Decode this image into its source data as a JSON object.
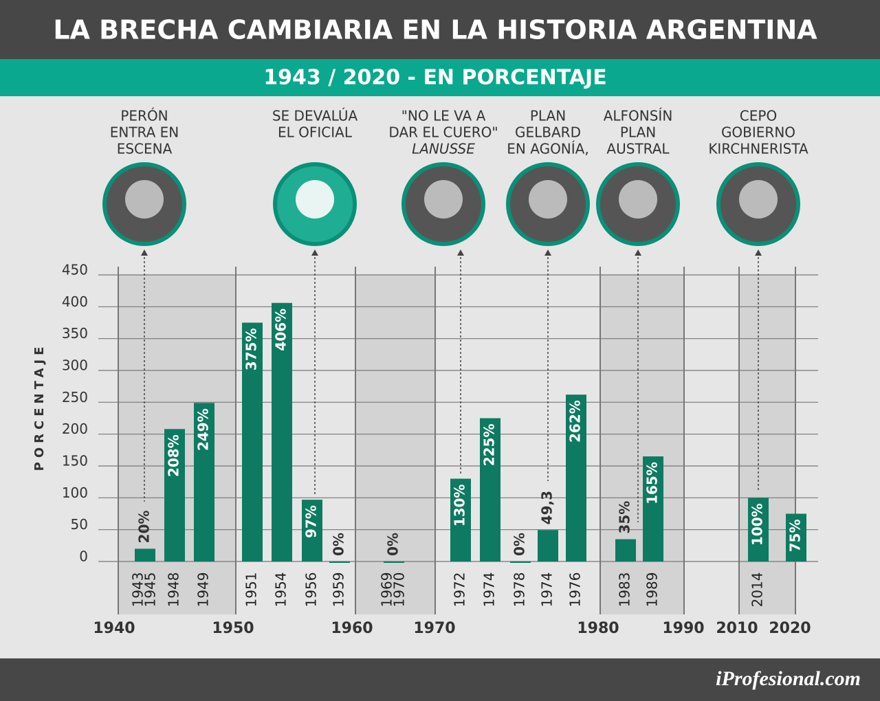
{
  "chart_data": {
    "type": "bar",
    "title": "LA BRECHA CAMBIARIA EN LA HISTORIA ARGENTINA",
    "subtitle": "1943 / 2020 - EN PORCENTAJE",
    "y_label": "PORCENTAJE",
    "color": "#0e7a62",
    "ylim": [
      0,
      450
    ],
    "yticks": [
      0,
      50,
      100,
      150,
      200,
      250,
      300,
      350,
      400,
      450
    ],
    "grid": true,
    "categories": [
      [
        "1943",
        "1945"
      ],
      [
        "1948"
      ],
      [
        "1949"
      ],
      [
        "1951"
      ],
      [
        "1954"
      ],
      [
        "1956"
      ],
      [
        "1959"
      ],
      [
        "1969",
        "1970"
      ],
      [
        "1972"
      ],
      [
        "1974"
      ],
      [
        "1978"
      ],
      [
        "1974"
      ],
      [
        "1976"
      ],
      [
        "1983"
      ],
      [
        "1989"
      ],
      [
        "2014"
      ],
      null
    ],
    "values": [
      20,
      208,
      249,
      375,
      406,
      97,
      0,
      0,
      130,
      225,
      0,
      49.3,
      262,
      35,
      165,
      100,
      75
    ],
    "value_labels": [
      "20%",
      "208%",
      "249%",
      "375%",
      "406%",
      "97%",
      "0%",
      "0%",
      "130%",
      "225%",
      "0%",
      "49,3",
      "262%",
      "35%",
      "165%",
      "100%",
      "75%"
    ],
    "decades": [
      1940,
      1950,
      1960,
      1970,
      1980,
      1990,
      2010,
      2020
    ],
    "annotations": [
      {
        "lines": [
          "PERÓN",
          "ENTRA EN",
          "ESCENA"
        ]
      },
      {
        "lines": [
          "SE DEVALÚA",
          "EL OFICIAL"
        ]
      },
      {
        "lines": [
          "\"NO LE VA A",
          "DAR EL CUERO\"",
          "LANUSSE"
        ]
      },
      {
        "lines": [
          "PLAN",
          "GELBARD",
          "EN AGONÍA,"
        ]
      },
      {
        "lines": [
          "ALFONSÍN",
          "PLAN",
          "AUSTRAL"
        ]
      },
      {
        "lines": [
          "CEPO",
          "GOBIERNO",
          "KIRCHNERISTA"
        ]
      }
    ],
    "footer": "iProfesional.com"
  }
}
